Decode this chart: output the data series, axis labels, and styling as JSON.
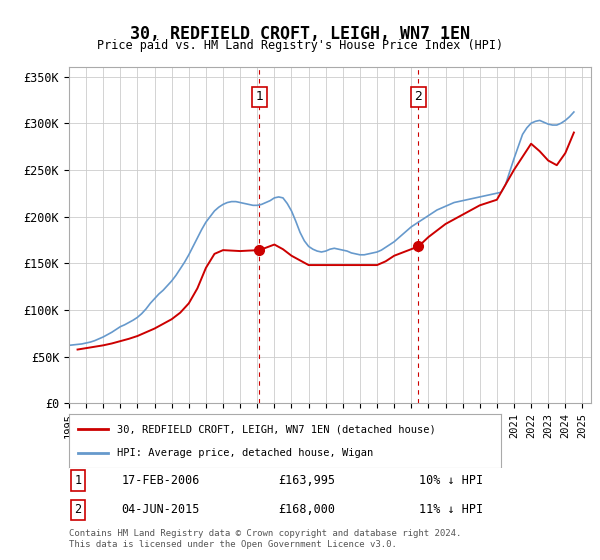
{
  "title": "30, REDFIELD CROFT, LEIGH, WN7 1EN",
  "subtitle": "Price paid vs. HM Land Registry's House Price Index (HPI)",
  "ylabel_ticks": [
    "£0",
    "£50K",
    "£100K",
    "£150K",
    "£200K",
    "£250K",
    "£300K",
    "£350K"
  ],
  "ylabel_values": [
    0,
    50000,
    100000,
    150000,
    200000,
    250000,
    300000,
    350000
  ],
  "ylim": [
    0,
    360000
  ],
  "xlim_start": 1995.0,
  "xlim_end": 2025.5,
  "legend_line1": "30, REDFIELD CROFT, LEIGH, WN7 1EN (detached house)",
  "legend_line2": "HPI: Average price, detached house, Wigan",
  "marker1_x": 2006.13,
  "marker1_y": 163995,
  "marker1_label": "1",
  "marker1_date": "17-FEB-2006",
  "marker1_price": "£163,995",
  "marker1_pct": "10% ↓ HPI",
  "marker2_x": 2015.42,
  "marker2_y": 168000,
  "marker2_label": "2",
  "marker2_date": "04-JUN-2015",
  "marker2_price": "£168,000",
  "marker2_pct": "11% ↓ HPI",
  "hpi_color": "#6699cc",
  "price_color": "#cc0000",
  "marker_color": "#cc0000",
  "grid_color": "#cccccc",
  "bg_color": "#ffffff",
  "footnote": "Contains HM Land Registry data © Crown copyright and database right 2024.\nThis data is licensed under the Open Government Licence v3.0.",
  "hpi_data_x": [
    1995.0,
    1995.25,
    1995.5,
    1995.75,
    1996.0,
    1996.25,
    1996.5,
    1996.75,
    1997.0,
    1997.25,
    1997.5,
    1997.75,
    1998.0,
    1998.25,
    1998.5,
    1998.75,
    1999.0,
    1999.25,
    1999.5,
    1999.75,
    2000.0,
    2000.25,
    2000.5,
    2000.75,
    2001.0,
    2001.25,
    2001.5,
    2001.75,
    2002.0,
    2002.25,
    2002.5,
    2002.75,
    2003.0,
    2003.25,
    2003.5,
    2003.75,
    2004.0,
    2004.25,
    2004.5,
    2004.75,
    2005.0,
    2005.25,
    2005.5,
    2005.75,
    2006.0,
    2006.25,
    2006.5,
    2006.75,
    2007.0,
    2007.25,
    2007.5,
    2007.75,
    2008.0,
    2008.25,
    2008.5,
    2008.75,
    2009.0,
    2009.25,
    2009.5,
    2009.75,
    2010.0,
    2010.25,
    2010.5,
    2010.75,
    2011.0,
    2011.25,
    2011.5,
    2011.75,
    2012.0,
    2012.25,
    2012.5,
    2012.75,
    2013.0,
    2013.25,
    2013.5,
    2013.75,
    2014.0,
    2014.25,
    2014.5,
    2014.75,
    2015.0,
    2015.25,
    2015.5,
    2015.75,
    2016.0,
    2016.25,
    2016.5,
    2016.75,
    2017.0,
    2017.25,
    2017.5,
    2017.75,
    2018.0,
    2018.25,
    2018.5,
    2018.75,
    2019.0,
    2019.25,
    2019.5,
    2019.75,
    2020.0,
    2020.25,
    2020.5,
    2020.75,
    2021.0,
    2021.25,
    2021.5,
    2021.75,
    2022.0,
    2022.25,
    2022.5,
    2022.75,
    2023.0,
    2023.25,
    2023.5,
    2023.75,
    2024.0,
    2024.25,
    2024.5
  ],
  "hpi_data_y": [
    62000,
    62500,
    63000,
    63500,
    64500,
    65500,
    67000,
    69000,
    71000,
    73500,
    76000,
    79000,
    82000,
    84000,
    86500,
    89000,
    92000,
    96000,
    101000,
    107000,
    112000,
    117000,
    121000,
    126000,
    131000,
    137000,
    144000,
    151000,
    159000,
    168000,
    177000,
    186000,
    194000,
    200000,
    206000,
    210000,
    213000,
    215000,
    216000,
    216000,
    215000,
    214000,
    213000,
    212000,
    212000,
    213000,
    215000,
    217000,
    220000,
    221000,
    220000,
    214000,
    206000,
    195000,
    183000,
    174000,
    168000,
    165000,
    163000,
    162000,
    163000,
    165000,
    166000,
    165000,
    164000,
    163000,
    161000,
    160000,
    159000,
    159000,
    160000,
    161000,
    162000,
    164000,
    167000,
    170000,
    173000,
    177000,
    181000,
    185000,
    189000,
    192000,
    195000,
    198000,
    201000,
    204000,
    207000,
    209000,
    211000,
    213000,
    215000,
    216000,
    217000,
    218000,
    219000,
    220000,
    221000,
    222000,
    223000,
    224000,
    225000,
    226000,
    234000,
    248000,
    262000,
    275000,
    288000,
    295000,
    300000,
    302000,
    303000,
    301000,
    299000,
    298000,
    298000,
    300000,
    303000,
    307000,
    312000
  ],
  "price_data_x": [
    1995.5,
    1996.0,
    1996.5,
    1997.0,
    1997.5,
    1998.0,
    1998.5,
    1999.0,
    1999.5,
    2000.0,
    2001.0,
    2001.5,
    2002.0,
    2002.5,
    2003.0,
    2003.5,
    2003.75,
    2004.0,
    2004.5,
    2005.0,
    2005.5,
    2006.13,
    2007.0,
    2007.5,
    2008.0,
    2009.0,
    2010.0,
    2011.0,
    2012.0,
    2013.0,
    2013.5,
    2014.0,
    2015.42,
    2016.0,
    2017.0,
    2018.0,
    2019.0,
    2020.0,
    2021.0,
    2022.0,
    2022.5,
    2023.0,
    2023.5,
    2024.0,
    2024.5
  ],
  "price_data_y": [
    57500,
    59000,
    60500,
    62000,
    64000,
    66500,
    69000,
    72000,
    76000,
    80000,
    90000,
    97000,
    107000,
    123000,
    145000,
    160000,
    162000,
    164000,
    163500,
    163000,
    163500,
    163995,
    170000,
    165000,
    158000,
    148000,
    148000,
    148000,
    148000,
    148000,
    152000,
    158000,
    168000,
    178000,
    192000,
    202000,
    212000,
    218000,
    250000,
    278000,
    270000,
    260000,
    255000,
    268000,
    290000
  ]
}
